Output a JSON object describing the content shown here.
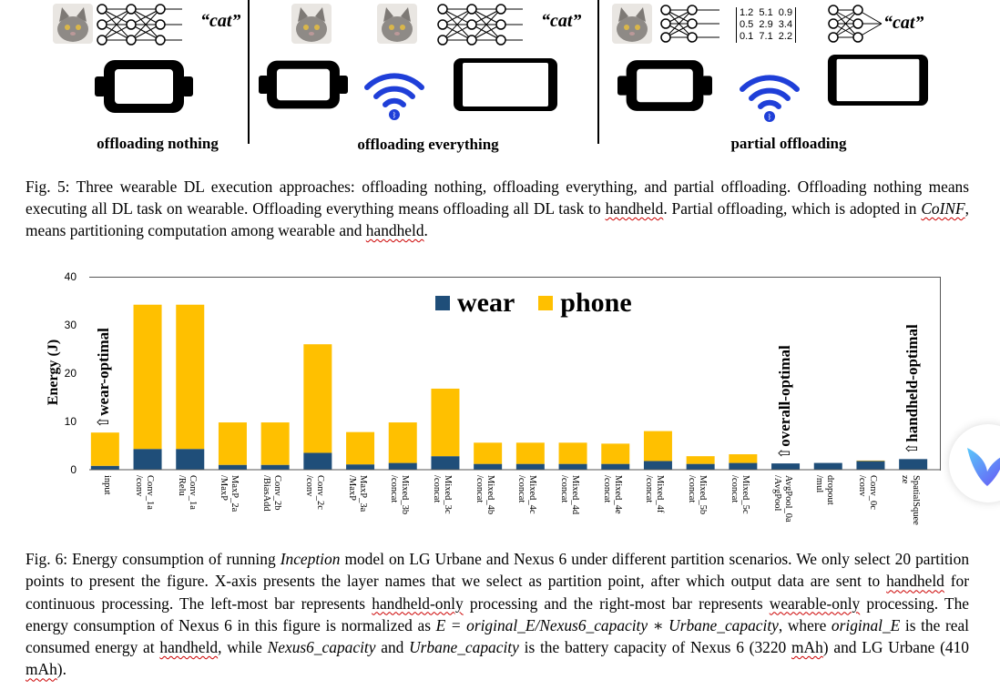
{
  "figure5": {
    "panels": [
      {
        "label": "offloading nothing"
      },
      {
        "label": "offloading everything"
      },
      {
        "label": "partial offloading"
      }
    ],
    "quote_label": "“cat”",
    "matrix": "1.2  5.1  0.9\n0.5  2.9  3.4\n0.1  7.1  2.2",
    "caption_parts": [
      "Fig. 5: Three wearable DL execution approaches: offloading nothing, offloading everything, and partial offloading. Offloading nothing means executing all DL task on wearable. Offloading everything means offloading all DL task to ",
      "handheld",
      ". Partial offloading, which is adopted in ",
      "CoINF",
      ", means partitioning computation among wearable and ",
      "handheld",
      "."
    ]
  },
  "chart_data": {
    "type": "bar",
    "stacked": true,
    "ylabel": "Energy (J)",
    "ylim": [
      0,
      40
    ],
    "yticks": [
      0,
      10,
      20,
      30,
      40
    ],
    "legend_placement": "top-center",
    "categories": [
      "input",
      "Conv_1a\n/conv",
      "Conv_1a\n/Relu",
      "MaxP_2a\n/MaxP",
      "Conv_2b\n/BiasAdd",
      "Conv_2c\n/conv",
      "MaxP_3a\n/MaxP",
      "Mixed_3b\n/concat",
      "Mixed_3c\n/concat",
      "Mixed_4b\n/concat",
      "Mixed_4c\n/concat",
      "Mixed_4d\n/concat",
      "Mixed_4e\n/concat",
      "Mixed_4f\n/concat",
      "Mixed_5b\n/concat",
      "Mixed_5c\n/concat",
      "AvgPool_0a\n/AvgPool",
      "dropout\n/mul",
      "Conv_0c\n/conv",
      "SpatialSquee\nze"
    ],
    "series": [
      {
        "name": "wear",
        "color": "#1f4e79",
        "values": [
          0.8,
          4.3,
          4.3,
          1.0,
          1.0,
          3.5,
          1.1,
          1.4,
          2.8,
          1.2,
          1.2,
          1.2,
          1.2,
          1.8,
          1.2,
          1.4,
          1.3,
          1.4,
          1.8,
          2.2
        ]
      },
      {
        "name": "phone",
        "color": "#ffc000",
        "values": [
          6.9,
          29.9,
          29.9,
          8.8,
          8.8,
          22.5,
          6.7,
          8.4,
          14.0,
          4.4,
          4.4,
          4.4,
          4.2,
          6.2,
          1.6,
          1.8,
          0.0,
          0.0,
          0.1,
          0.0
        ]
      }
    ],
    "annotations": [
      {
        "text": "⇧wear-optimal",
        "category": "input"
      },
      {
        "text": "⇧overall-optimal",
        "category": "AvgPool_0a\n/AvgPool"
      },
      {
        "text": "⇧handheld-optimal",
        "category": "SpatialSquee\nze"
      }
    ]
  },
  "figure6": {
    "caption_parts": [
      "Fig. 6: Energy consumption of running ",
      "Inception",
      " model on LG Urbane and Nexus 6 under different partition scenarios. We only select 20 partition points to present the figure. X-axis presents the layer names that we select as partition point, after which output data are sent to ",
      "handheld",
      " for continuous processing. The left-most bar represents ",
      "handheld-only",
      " processing and the right-most bar represents ",
      "wearable-only",
      " processing. The energy consumption of Nexus 6 in this figure is normalized as ",
      "E = original_E/Nexus6_capacity ∗ Urbane_capacity",
      ", where ",
      "original_E",
      " is the real consumed energy at ",
      "handheld",
      ", while ",
      "Nexus6_capacity",
      " and ",
      "Urbane_capacity",
      " is the battery capacity of Nexus 6 (3220 ",
      "mAh",
      ") and LG Urbane (410 ",
      "mAh",
      ")."
    ]
  }
}
